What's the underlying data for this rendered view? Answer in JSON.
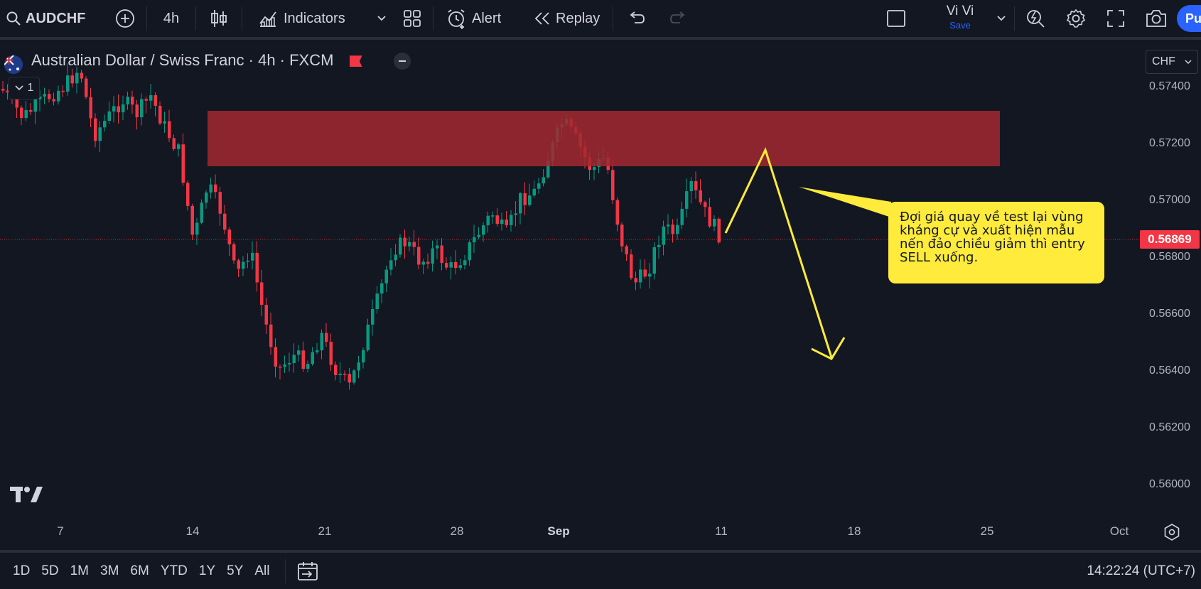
{
  "toolbar": {
    "symbol": "AUDCHF",
    "interval": "4h",
    "indicators_label": "Indicators",
    "alert_label": "Alert",
    "replay_label": "Replay",
    "user_name": "Vi Vi",
    "save_label": "Save",
    "publish_label": "Pu"
  },
  "legend": {
    "title": "Australian Dollar / Swiss Franc · 4h · FXCM",
    "collapsed_count": "1"
  },
  "price_scale": {
    "currency": "CHF",
    "labels": [
      "0.57400",
      "0.57200",
      "0.57000",
      "0.56800",
      "0.56600",
      "0.56400",
      "0.56200",
      "0.56000"
    ],
    "last_price": "0.56869"
  },
  "time_scale": {
    "labels": [
      "7",
      "14",
      "21",
      "28",
      "Sep",
      "11",
      "18",
      "25",
      "Oct"
    ]
  },
  "annotation": {
    "text": "Đợi giá quay về test lại vùng kháng cự và xuất hiện mẫu nến đảo chiều giảm thì entry SELL xuống."
  },
  "bottom": {
    "ranges": [
      "1D",
      "5D",
      "1M",
      "3M",
      "6M",
      "YTD",
      "1Y",
      "5Y",
      "All"
    ],
    "clock": "14:22:24 (UTC+7)"
  },
  "colors": {
    "background": "#131722",
    "up": "#089981",
    "down": "#f23645",
    "zone": "#a2282f",
    "annotation": "#ffeb3b"
  }
}
